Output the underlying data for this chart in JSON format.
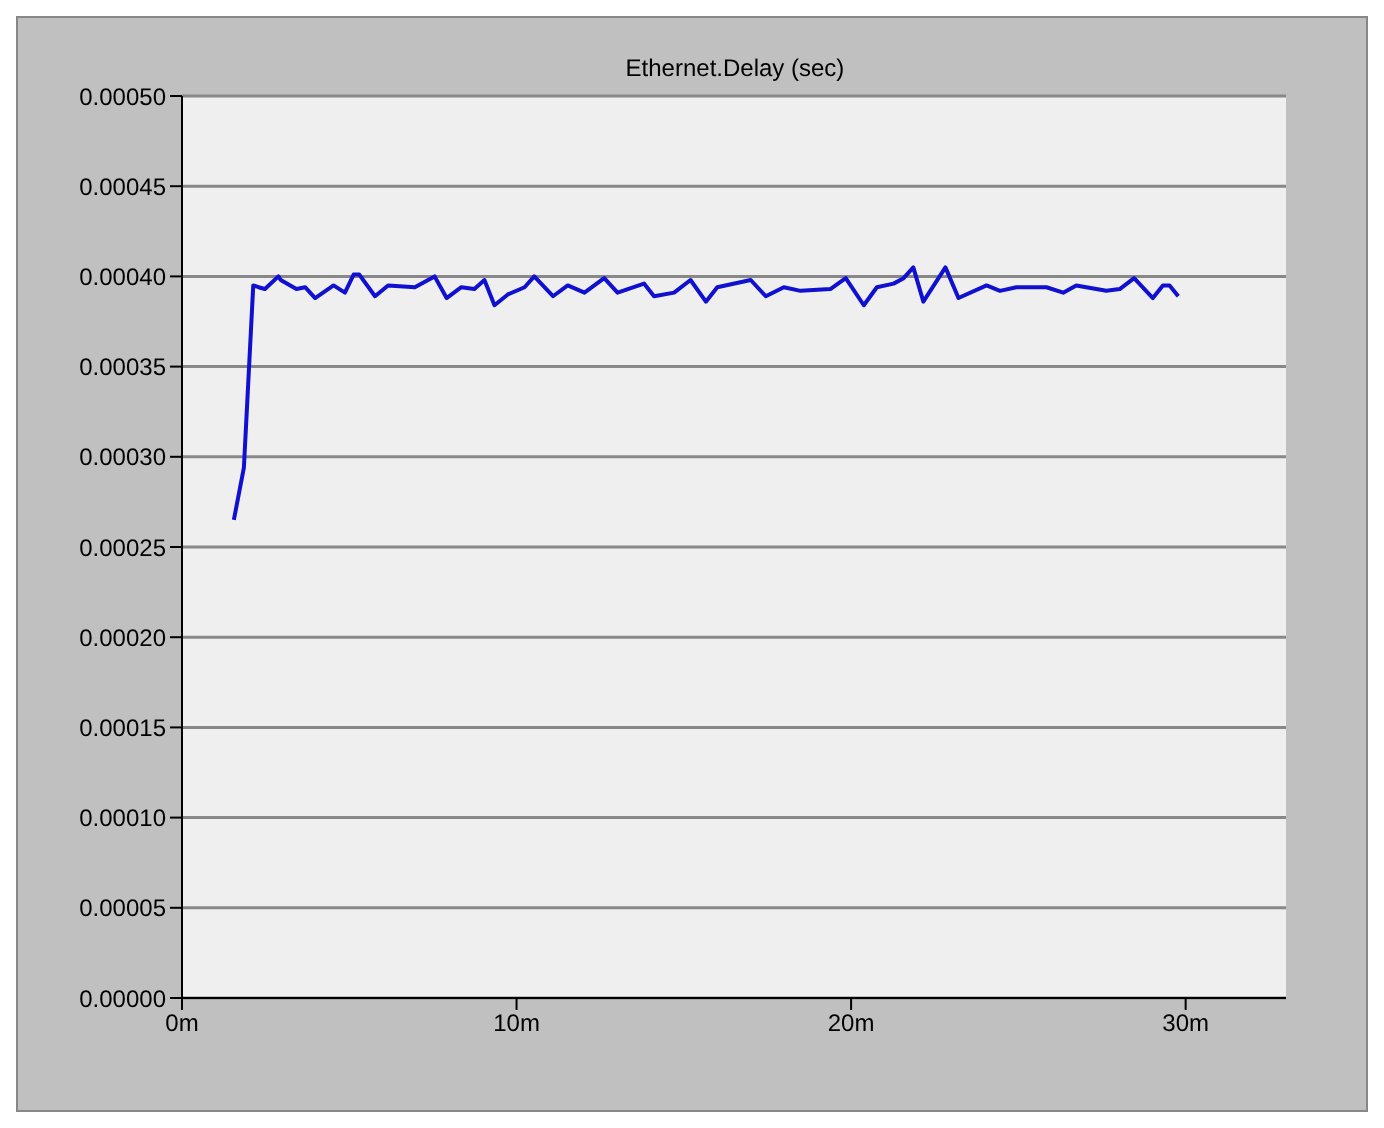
{
  "chart_data": {
    "type": "line",
    "title": "Ethernet.Delay (sec)",
    "x": [
      1.55,
      1.85,
      2.13,
      2.29,
      2.48,
      2.88,
      2.95,
      3.42,
      3.68,
      3.98,
      4.53,
      4.87,
      5.13,
      5.3,
      5.77,
      6.16,
      6.96,
      7.55,
      7.91,
      8.35,
      8.74,
      9.04,
      9.34,
      9.74,
      10.24,
      10.53,
      11.09,
      11.53,
      12.03,
      12.62,
      13.02,
      13.81,
      14.11,
      14.71,
      15.2,
      15.66,
      16.0,
      17.0,
      17.45,
      17.99,
      18.49,
      19.38,
      19.84,
      20.38,
      20.77,
      21.27,
      21.57,
      21.86,
      22.16,
      22.82,
      23.21,
      24.05,
      24.45,
      24.94,
      25.84,
      26.34,
      26.73,
      27.63,
      28.03,
      28.46,
      29.02,
      29.32,
      29.52,
      29.78
    ],
    "series": [
      {
        "color": "#1010d0",
        "values": [
          0.000265,
          0.000294,
          0.000395,
          0.000394,
          0.000393,
          0.0004,
          0.000398,
          0.000393,
          0.000394,
          0.000388,
          0.000395,
          0.000391,
          0.000401,
          0.000401,
          0.000389,
          0.000395,
          0.000394,
          0.0004,
          0.000388,
          0.000394,
          0.000393,
          0.000398,
          0.000384,
          0.00039,
          0.000394,
          0.0004,
          0.000389,
          0.000395,
          0.000391,
          0.000399,
          0.000391,
          0.000396,
          0.000389,
          0.000391,
          0.000398,
          0.000386,
          0.000394,
          0.000398,
          0.000389,
          0.000394,
          0.000392,
          0.000393,
          0.000399,
          0.000384,
          0.000394,
          0.000396,
          0.000399,
          0.000405,
          0.000386,
          0.000405,
          0.000388,
          0.000395,
          0.000392,
          0.000394,
          0.000394,
          0.000391,
          0.000395,
          0.000392,
          0.000393,
          0.000399,
          0.000388,
          0.000395,
          0.000395,
          0.000389
        ]
      }
    ],
    "xlim": [
      0,
      33
    ],
    "xticks": [
      {
        "value": 0,
        "label": "0m"
      },
      {
        "value": 10,
        "label": "10m"
      },
      {
        "value": 20,
        "label": "20m"
      },
      {
        "value": 30,
        "label": "30m"
      }
    ],
    "ylim": [
      0,
      0.0005
    ],
    "yticks": [
      {
        "value": 0,
        "label": "0.00000"
      },
      {
        "value": 5e-05,
        "label": "0.00005"
      },
      {
        "value": 0.0001,
        "label": "0.00010"
      },
      {
        "value": 0.00015,
        "label": "0.00015"
      },
      {
        "value": 0.0002,
        "label": "0.00020"
      },
      {
        "value": 0.00025,
        "label": "0.00025"
      },
      {
        "value": 0.0003,
        "label": "0.00030"
      },
      {
        "value": 0.00035,
        "label": "0.00035"
      },
      {
        "value": 0.0004,
        "label": "0.00040"
      },
      {
        "value": 0.00045,
        "label": "0.00045"
      },
      {
        "value": 0.0005,
        "label": "0.00050"
      }
    ],
    "grid": "y",
    "legend": false,
    "marker": "none",
    "line_style": "solid"
  }
}
